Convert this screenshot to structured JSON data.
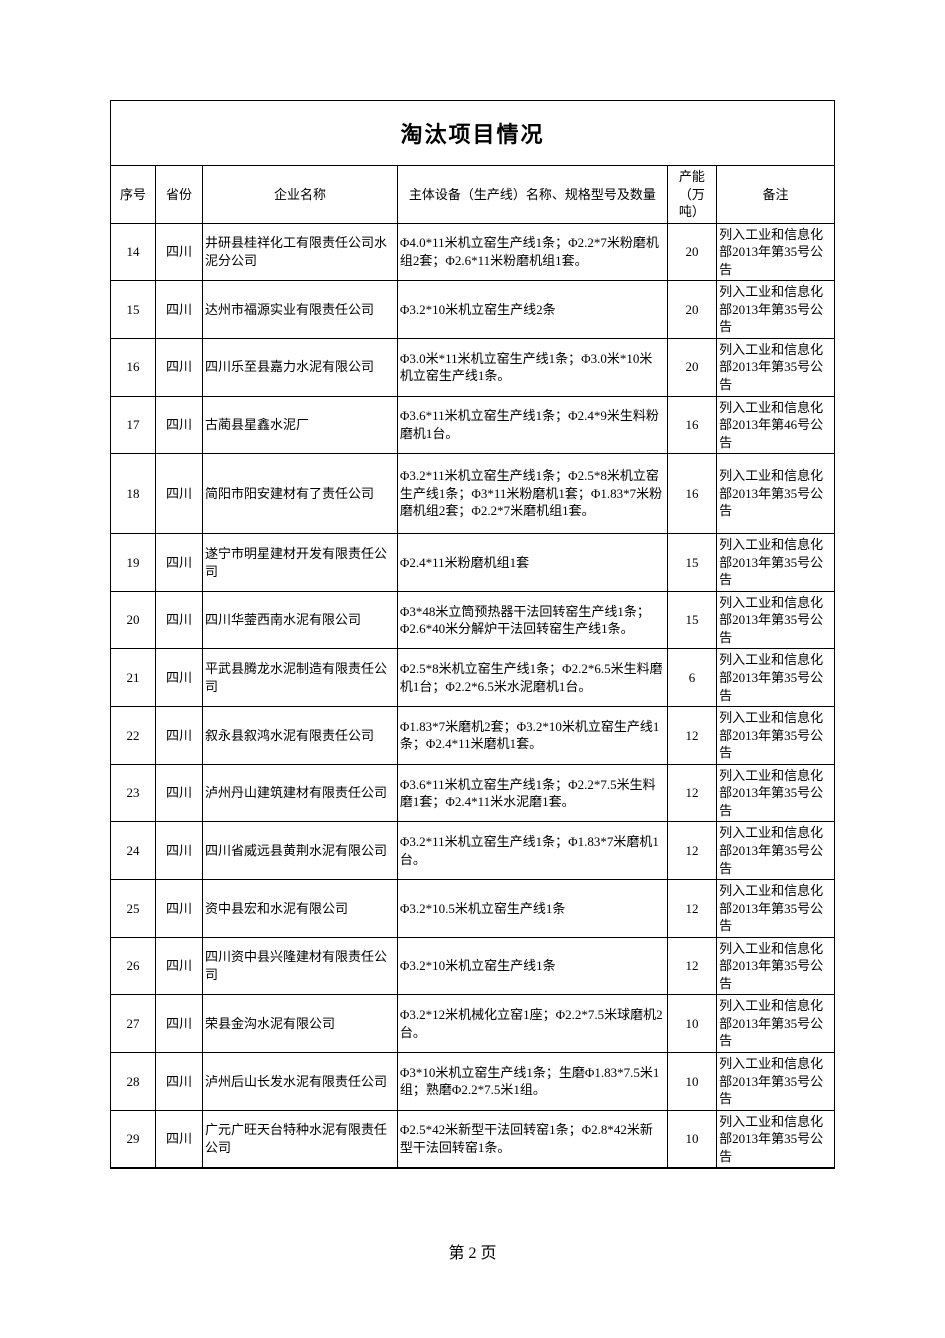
{
  "title": "淘汰项目情况",
  "columns": {
    "seq": "序号",
    "province": "省份",
    "company": "企业名称",
    "equipment": "主体设备（生产线）名称、规格型号及数量",
    "capacity": "产能（万吨）",
    "remark": "备注"
  },
  "rows": [
    {
      "seq": "14",
      "province": "四川",
      "company": "井研县桂祥化工有限责任公司水泥分公司",
      "equipment": "Φ4.0*11米机立窑生产线1条；Φ2.2*7米粉磨机组2套；Φ2.6*11米粉磨机组1套。",
      "capacity": "20",
      "remark": "列入工业和信息化部2013年第35号公告"
    },
    {
      "seq": "15",
      "province": "四川",
      "company": "达州市福源实业有限责任公司",
      "equipment": "Φ3.2*10米机立窑生产线2条",
      "capacity": "20",
      "remark": "列入工业和信息化部2013年第35号公告"
    },
    {
      "seq": "16",
      "province": "四川",
      "company": "四川乐至县嘉力水泥有限公司",
      "equipment": "Φ3.0米*11米机立窑生产线1条；Φ3.0米*10米机立窑生产线1条。",
      "capacity": "20",
      "remark": "列入工业和信息化部2013年第35号公告"
    },
    {
      "seq": "17",
      "province": "四川",
      "company": "古蔺县星鑫水泥厂",
      "equipment": "Φ3.6*11米机立窑生产线1条；Φ2.4*9米生料粉磨机1台。",
      "capacity": "16",
      "remark": "列入工业和信息化部2013年第46号公告"
    },
    {
      "seq": "18",
      "province": "四川",
      "company": "简阳市阳安建材有了责任公司",
      "equipment": "Φ3.2*11米机立窑生产线1条；Φ2.5*8米机立窑生产线1条；Φ3*11米粉磨机1套；Φ1.83*7米粉磨机组2套；Φ2.2*7米磨机组1套。",
      "capacity": "16",
      "remark": "列入工业和信息化部2013年第35号公告",
      "tall": true
    },
    {
      "seq": "19",
      "province": "四川",
      "company": "遂宁市明星建材开发有限责任公司",
      "equipment": "Φ2.4*11米粉磨机组1套",
      "capacity": "15",
      "remark": "列入工业和信息化部2013年第35号公告"
    },
    {
      "seq": "20",
      "province": "四川",
      "company": "四川华蓥西南水泥有限公司",
      "equipment": "Φ3*48米立筒预热器干法回转窑生产线1条；Φ2.6*40米分解炉干法回转窑生产线1条。",
      "capacity": "15",
      "remark": "列入工业和信息化部2013年第35号公告"
    },
    {
      "seq": "21",
      "province": "四川",
      "company": "平武县腾龙水泥制造有限责任公司",
      "equipment": "Φ2.5*8米机立窑生产线1条；Φ2.2*6.5米生料磨机1台；Φ2.2*6.5米水泥磨机1台。",
      "capacity": "6",
      "remark": "列入工业和信息化部2013年第35号公告"
    },
    {
      "seq": "22",
      "province": "四川",
      "company": "叙永县叙鸿水泥有限责任公司",
      "equipment": "Φ1.83*7米磨机2套；Φ3.2*10米机立窑生产线1条；Φ2.4*11米磨机1套。",
      "capacity": "12",
      "remark": "列入工业和信息化部2013年第35号公告"
    },
    {
      "seq": "23",
      "province": "四川",
      "company": "泸州丹山建筑建材有限责任公司",
      "equipment": "Φ3.6*11米机立窑生产线1条；Φ2.2*7.5米生料磨1套；Φ2.4*11米水泥磨1套。",
      "capacity": "12",
      "remark": "列入工业和信息化部2013年第35号公告"
    },
    {
      "seq": "24",
      "province": "四川",
      "company": "四川省威远县黄荆水泥有限公司",
      "equipment": "Φ3.2*11米机立窑生产线1条；Φ1.83*7米磨机1台。",
      "capacity": "12",
      "remark": "列入工业和信息化部2013年第35号公告"
    },
    {
      "seq": "25",
      "province": "四川",
      "company": "资中县宏和水泥有限公司",
      "equipment": "Φ3.2*10.5米机立窑生产线1条",
      "capacity": "12",
      "remark": "列入工业和信息化部2013年第35号公告"
    },
    {
      "seq": "26",
      "province": "四川",
      "company": "四川资中县兴隆建材有限责任公司",
      "equipment": "Φ3.2*10米机立窑生产线1条",
      "capacity": "12",
      "remark": "列入工业和信息化部2013年第35号公告"
    },
    {
      "seq": "27",
      "province": "四川",
      "company": "荣县金沟水泥有限公司",
      "equipment": "Φ3.2*12米机械化立窑1座；Φ2.2*7.5米球磨机2台。",
      "capacity": "10",
      "remark": "列入工业和信息化部2013年第35号公告"
    },
    {
      "seq": "28",
      "province": "四川",
      "company": "泸州后山长发水泥有限责任公司",
      "equipment": "Φ3*10米机立窑生产线1条；生磨Φ1.83*7.5米1组；熟磨Φ2.2*7.5米1组。",
      "capacity": "10",
      "remark": "列入工业和信息化部2013年第35号公告"
    },
    {
      "seq": "29",
      "province": "四川",
      "company": "广元广旺天台特种水泥有限责任公司",
      "equipment": "Φ2.5*42米新型干法回转窑1条；Φ2.8*42米新型干法回转窑1条。",
      "capacity": "10",
      "remark": "列入工业和信息化部2013年第35号公告"
    }
  ],
  "page_number": "第 2 页"
}
